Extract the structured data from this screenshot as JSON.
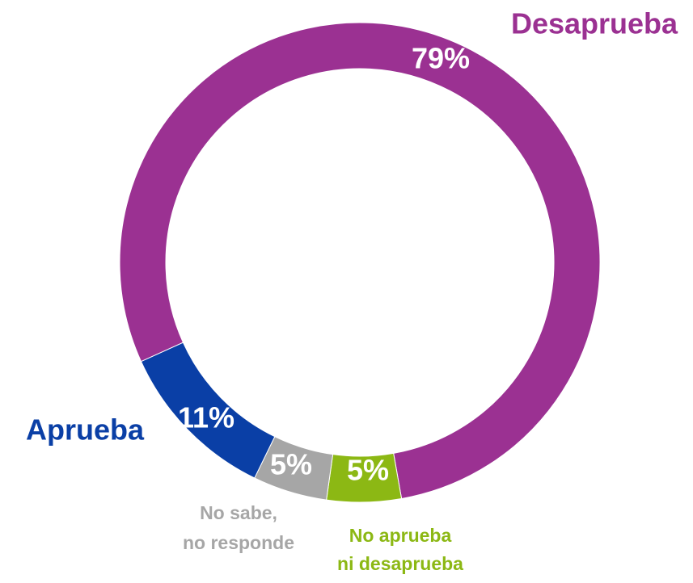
{
  "chart_data": {
    "type": "donut",
    "categories": [
      "Desaprueba",
      "No aprueba ni desaprueba",
      "No sabe, no responde",
      "Aprueba"
    ],
    "values": [
      79,
      5,
      5,
      11
    ],
    "value_labels": [
      "79%",
      "5%",
      "5%",
      "11%"
    ],
    "colors": [
      "#9b3192",
      "#8cb814",
      "#a6a6a6",
      "#0a3fa6"
    ]
  }
}
